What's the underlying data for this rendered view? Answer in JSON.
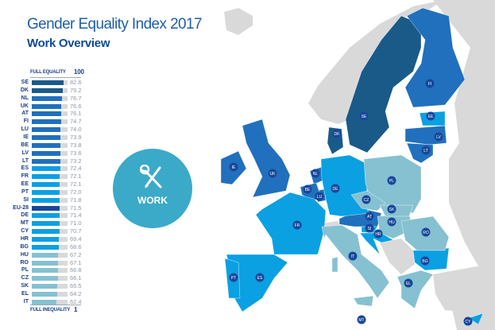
{
  "header": {
    "title": "Gender Equality Index 2017",
    "subtitle": "Work Overview"
  },
  "scale": {
    "top_label": "FULL EQUALITY",
    "top_value": "100",
    "bottom_label": "FULL INEQUALITY",
    "bottom_value": "1"
  },
  "badge": {
    "label": "WORK",
    "icon": "wrench-pencil-icon",
    "color": "#3aaac8"
  },
  "colors": {
    "tier1": "#195a89",
    "tier2": "#2170bd",
    "tier3": "#0aa0e2",
    "tier4": "#86c1d1",
    "eu": "#17479a",
    "land": "#d9d9d9"
  },
  "ranking": [
    {
      "code": "SE",
      "value": 82.6,
      "tier": "tier1"
    },
    {
      "code": "DK",
      "value": 79.2,
      "tier": "tier1"
    },
    {
      "code": "NL",
      "value": 76.7,
      "tier": "tier2"
    },
    {
      "code": "UK",
      "value": 76.6,
      "tier": "tier2"
    },
    {
      "code": "AT",
      "value": 76.1,
      "tier": "tier2"
    },
    {
      "code": "FI",
      "value": 74.7,
      "tier": "tier2"
    },
    {
      "code": "LU",
      "value": 74.0,
      "tier": "tier2"
    },
    {
      "code": "IE",
      "value": 73.9,
      "tier": "tier2"
    },
    {
      "code": "BE",
      "value": 73.8,
      "tier": "tier2"
    },
    {
      "code": "LV",
      "value": 73.6,
      "tier": "tier2"
    },
    {
      "code": "LT",
      "value": 73.2,
      "tier": "tier2"
    },
    {
      "code": "ES",
      "value": 72.4,
      "tier": "tier3"
    },
    {
      "code": "FR",
      "value": 72.1,
      "tier": "tier3"
    },
    {
      "code": "EE",
      "value": 72.1,
      "tier": "tier3"
    },
    {
      "code": "PT",
      "value": 72.0,
      "tier": "tier3"
    },
    {
      "code": "SI",
      "value": 71.8,
      "tier": "tier3"
    },
    {
      "code": "EU-28",
      "value": 71.5,
      "tier": "eu"
    },
    {
      "code": "DE",
      "value": 71.4,
      "tier": "tier3"
    },
    {
      "code": "MT",
      "value": 71.0,
      "tier": "tier3"
    },
    {
      "code": "CY",
      "value": 70.7,
      "tier": "tier3"
    },
    {
      "code": "HR",
      "value": 69.4,
      "tier": "tier3"
    },
    {
      "code": "BG",
      "value": 68.6,
      "tier": "tier3"
    },
    {
      "code": "HU",
      "value": 67.2,
      "tier": "tier4"
    },
    {
      "code": "RO",
      "value": 67.1,
      "tier": "tier4"
    },
    {
      "code": "PL",
      "value": 66.8,
      "tier": "tier4"
    },
    {
      "code": "CZ",
      "value": 66.1,
      "tier": "tier4"
    },
    {
      "code": "SK",
      "value": 65.5,
      "tier": "tier4"
    },
    {
      "code": "EL",
      "value": 64.2,
      "tier": "tier4"
    },
    {
      "code": "IT",
      "value": 62.4,
      "tier": "tier4"
    }
  ]
}
